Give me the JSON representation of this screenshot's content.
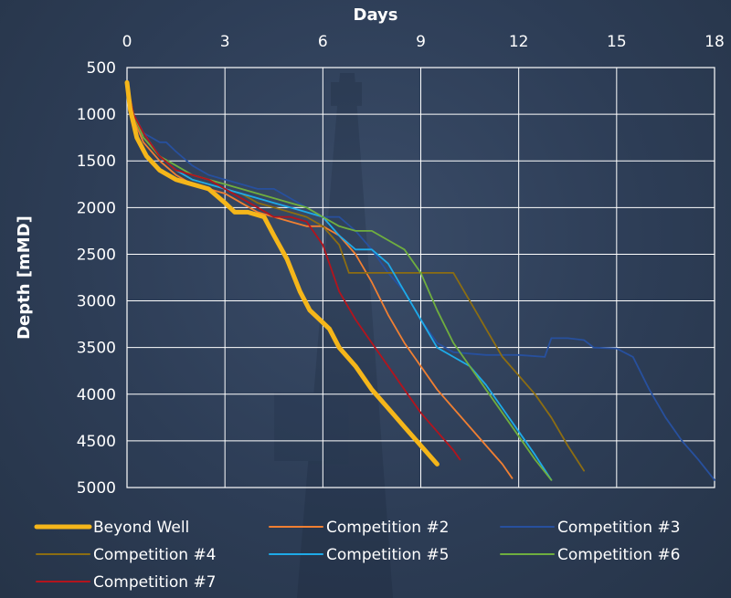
{
  "chart_data": {
    "type": "line",
    "title": "",
    "xlabel": "Days",
    "ylabel": "Depth [mMD]",
    "xlim": [
      0,
      18
    ],
    "ylim": [
      500,
      5000
    ],
    "y_inverted": true,
    "x_axis_position": "top",
    "x_ticks": [
      "0",
      "3",
      "6",
      "9",
      "12",
      "15",
      "18"
    ],
    "y_ticks": [
      "500",
      "1000",
      "1500",
      "2000",
      "2500",
      "3000",
      "3500",
      "4000",
      "4500",
      "5000"
    ],
    "grid": true,
    "legend_position": "bottom",
    "series": [
      {
        "name": "Beyond Well",
        "color": "#f5b61a",
        "highlight": true,
        "x": [
          0.0,
          0.1,
          0.3,
          0.6,
          1.0,
          1.5,
          2.0,
          2.5,
          3.0,
          3.3,
          3.7,
          4.2,
          4.5,
          4.9,
          5.3,
          5.6,
          5.9,
          6.2,
          6.5,
          7.0,
          7.5,
          8.0,
          8.5,
          9.0,
          9.5
        ],
        "y": [
          660,
          950,
          1250,
          1450,
          1600,
          1700,
          1750,
          1800,
          1950,
          2050,
          2050,
          2100,
          2300,
          2550,
          2900,
          3100,
          3200,
          3300,
          3500,
          3700,
          3950,
          4150,
          4350,
          4550,
          4750
        ]
      },
      {
        "name": "Competition #2",
        "color": "#f07f32",
        "x": [
          0.0,
          0.2,
          0.5,
          1.0,
          1.5,
          2.0,
          2.5,
          3.0,
          3.5,
          4.0,
          4.5,
          5.0,
          5.5,
          6.0,
          6.5,
          7.0,
          7.5,
          8.0,
          8.5,
          9.0,
          9.5,
          10.0,
          10.5,
          11.0,
          11.5,
          11.8
        ],
        "y": [
          680,
          1050,
          1300,
          1500,
          1650,
          1750,
          1800,
          1850,
          1950,
          2050,
          2100,
          2150,
          2200,
          2200,
          2300,
          2500,
          2800,
          3150,
          3450,
          3700,
          3950,
          4150,
          4350,
          4550,
          4750,
          4900
        ]
      },
      {
        "name": "Competition #3",
        "color": "#27509e",
        "x": [
          0.0,
          0.2,
          0.5,
          1.0,
          1.2,
          1.5,
          2.0,
          2.5,
          3.0,
          3.5,
          4.0,
          4.5,
          5.0,
          5.5,
          6.0,
          6.5,
          7.0,
          7.5,
          8.0,
          8.5,
          9.0,
          9.5,
          10.0,
          11.0,
          12.0,
          12.8,
          13.0,
          13.5,
          14.0,
          14.3,
          15.0,
          15.5,
          16.0,
          16.5,
          17.0,
          17.5,
          18.0
        ],
        "y": [
          700,
          1000,
          1200,
          1300,
          1300,
          1400,
          1550,
          1650,
          1700,
          1750,
          1800,
          1800,
          1900,
          2000,
          2100,
          2100,
          2250,
          2450,
          2700,
          2900,
          3200,
          3450,
          3550,
          3580,
          3580,
          3600,
          3400,
          3400,
          3420,
          3500,
          3510,
          3600,
          3950,
          4250,
          4500,
          4700,
          4920
        ]
      },
      {
        "name": "Competition #4",
        "color": "#8c6d12",
        "x": [
          0.0,
          0.2,
          0.5,
          1.0,
          1.5,
          2.0,
          2.5,
          3.0,
          3.5,
          4.0,
          4.5,
          5.0,
          5.5,
          6.0,
          6.5,
          6.8,
          7.0,
          8.0,
          9.0,
          10.0,
          10.5,
          11.0,
          11.5,
          12.0,
          12.5,
          13.0,
          13.5,
          14.0
        ],
        "y": [
          680,
          1000,
          1250,
          1450,
          1600,
          1700,
          1750,
          1800,
          1850,
          1950,
          2000,
          2050,
          2100,
          2200,
          2400,
          2700,
          2700,
          2700,
          2700,
          2700,
          3000,
          3300,
          3600,
          3800,
          4000,
          4250,
          4550,
          4820
        ]
      },
      {
        "name": "Competition #5",
        "color": "#1eaae8",
        "x": [
          0.0,
          0.2,
          0.5,
          1.0,
          1.5,
          2.0,
          2.5,
          3.0,
          3.5,
          4.0,
          4.5,
          5.0,
          5.5,
          6.0,
          6.5,
          7.0,
          7.5,
          8.0,
          8.5,
          9.0,
          9.5,
          10.0,
          10.5,
          11.0,
          11.5,
          12.0,
          12.5,
          13.0
        ],
        "y": [
          700,
          1000,
          1200,
          1450,
          1600,
          1700,
          1750,
          1800,
          1850,
          1900,
          1950,
          2000,
          2050,
          2100,
          2300,
          2450,
          2450,
          2600,
          2900,
          3200,
          3500,
          3600,
          3700,
          3900,
          4150,
          4400,
          4650,
          4920
        ]
      },
      {
        "name": "Competition #6",
        "color": "#6fae3f",
        "x": [
          0.0,
          0.2,
          0.5,
          1.0,
          1.5,
          2.0,
          2.5,
          3.0,
          3.5,
          4.0,
          4.5,
          5.0,
          5.5,
          6.0,
          6.5,
          7.0,
          7.5,
          8.0,
          8.5,
          9.0,
          9.5,
          10.0,
          10.5,
          11.0,
          11.5,
          12.0,
          12.5,
          13.0
        ],
        "y": [
          660,
          1000,
          1250,
          1450,
          1550,
          1650,
          1700,
          1750,
          1800,
          1850,
          1900,
          1950,
          2000,
          2100,
          2200,
          2250,
          2250,
          2350,
          2450,
          2700,
          3100,
          3450,
          3700,
          3950,
          4200,
          4450,
          4700,
          4920
        ]
      },
      {
        "name": "Competition #7",
        "color": "#b3141d",
        "x": [
          0.0,
          0.2,
          0.5,
          1.0,
          1.5,
          2.0,
          2.5,
          3.0,
          3.5,
          4.0,
          4.5,
          5.0,
          5.5,
          6.0,
          6.5,
          7.0,
          7.5,
          8.0,
          8.5,
          9.0,
          9.5,
          10.0,
          10.2
        ],
        "y": [
          660,
          1000,
          1200,
          1450,
          1600,
          1650,
          1700,
          1800,
          1900,
          2000,
          2100,
          2100,
          2150,
          2400,
          2900,
          3200,
          3450,
          3700,
          3950,
          4200,
          4400,
          4600,
          4700
        ]
      }
    ]
  }
}
